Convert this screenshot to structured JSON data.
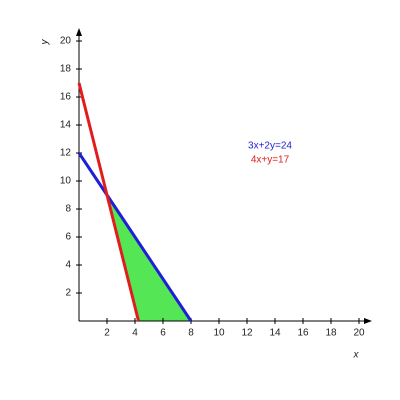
{
  "chart_data": {
    "type": "line",
    "xlabel": "x",
    "ylabel": "y",
    "xlim": [
      0,
      20
    ],
    "ylim": [
      0,
      20
    ],
    "xticks": [
      2,
      4,
      6,
      8,
      10,
      12,
      14,
      16,
      18,
      20
    ],
    "yticks": [
      2,
      4,
      6,
      8,
      10,
      12,
      14,
      16,
      18,
      20
    ],
    "grid": false,
    "series": [
      {
        "name": "3x+2y=24",
        "color": "#1f1fd6",
        "x": [
          0,
          8
        ],
        "values": [
          12,
          0
        ]
      },
      {
        "name": "4x+y=17",
        "color": "#e01c1c",
        "x": [
          0,
          4.25
        ],
        "values": [
          17,
          0
        ]
      }
    ],
    "fill_region": {
      "color": "#55e655",
      "x": [
        2,
        4.25,
        8
      ],
      "values": [
        9,
        0,
        0
      ]
    }
  }
}
